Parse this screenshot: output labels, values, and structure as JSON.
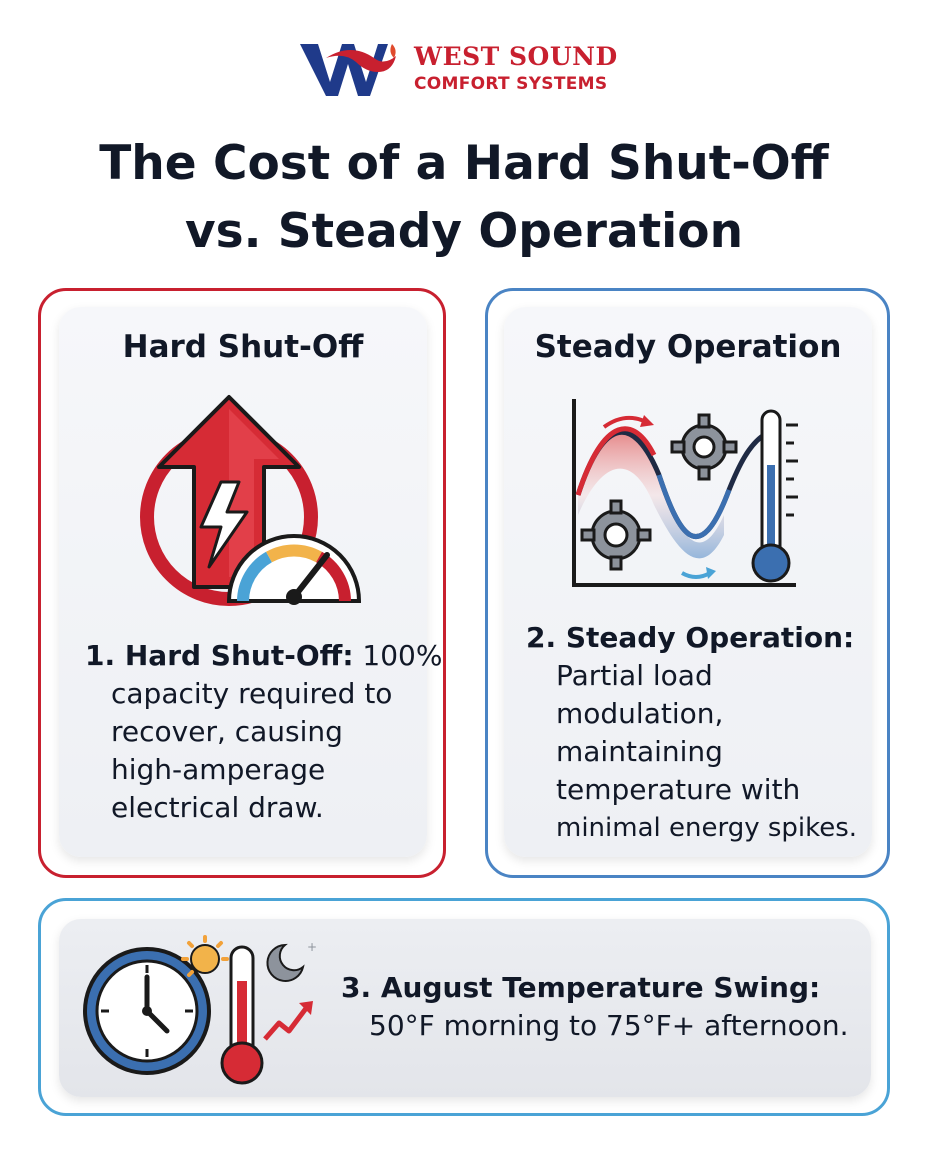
{
  "brand": {
    "line1": "WEST SOUND",
    "line2": "COMFORT SYSTEMS",
    "colors": {
      "red": "#c8202f",
      "navy": "#1f3a8a"
    }
  },
  "title": {
    "line1": "The Cost of a Hard Shut-Off",
    "line2": "vs. Steady Operation"
  },
  "cards": [
    {
      "heading": "Hard Shut-Off",
      "label": "1. Hard Shut-Off:",
      "text_inline": "100%",
      "lines": [
        "capacity required to",
        "recover, causing",
        "high-amperage",
        "electrical draw."
      ],
      "icon": "power-surge-gauge-icon",
      "accent": "#c8202f"
    },
    {
      "heading": "Steady Operation",
      "label": "2. Steady Operation:",
      "lines": [
        "Partial load",
        "modulation,",
        "maintaining",
        "temperature with",
        "minimal energy spikes."
      ],
      "icon": "wave-gears-thermometer-icon",
      "accent": "#4a84c4"
    },
    {
      "label": "3. August Temperature Swing:",
      "line": "50°F morning to 75°F+ afternoon.",
      "icon": "clock-thermometer-sun-moon-icon",
      "accent": "#4aa3d6"
    }
  ]
}
